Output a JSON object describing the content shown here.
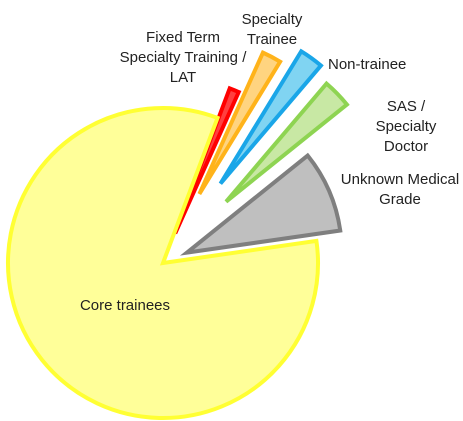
{
  "chart_data": {
    "type": "pie",
    "categories": [
      "Fixed Term Specialty Training / LAT",
      "Specialty Trainee",
      "Non-trainee",
      "SAS / Specialty Doctor",
      "Unknown Medical Grade",
      "Core trainees"
    ],
    "values": [
      1,
      2,
      2.5,
      3,
      8.5,
      83
    ],
    "colors": [
      "#ff4040",
      "#ffd480",
      "#80d4f2",
      "#c8e8a4",
      "#bfbfbf",
      "#ffff99"
    ],
    "edge_colors": [
      "#ff0000",
      "#ffb31a",
      "#1aa6e8",
      "#8ed452",
      "#7f7f7f",
      "#ffff33"
    ]
  }
}
